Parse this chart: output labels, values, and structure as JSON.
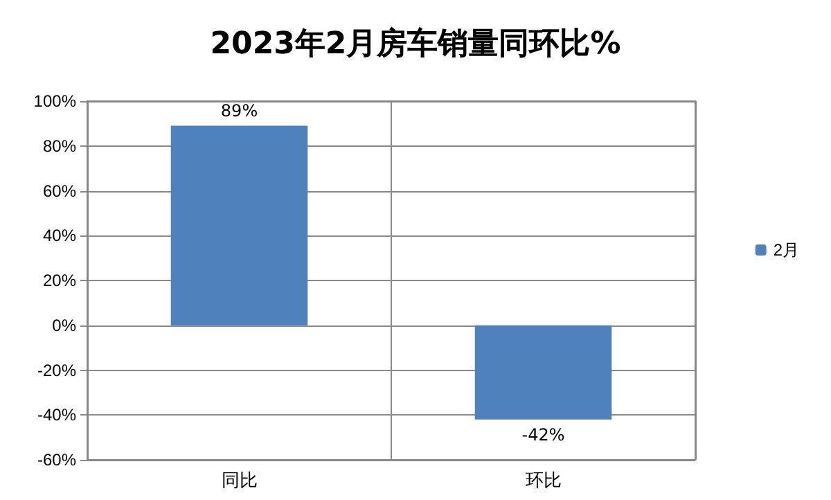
{
  "chart_data": {
    "type": "bar",
    "title": "2023年2月房车销量同环比%",
    "categories": [
      "同比",
      "环比"
    ],
    "series": [
      {
        "name": "2月",
        "color": "#4f81bd",
        "values": [
          89,
          -42
        ],
        "value_labels": [
          "89%",
          "-42%"
        ]
      }
    ],
    "ylim": [
      -60,
      100
    ],
    "yticks": [
      {
        "value": -60,
        "label": "-60%"
      },
      {
        "value": -40,
        "label": "-40%"
      },
      {
        "value": -20,
        "label": "-20%"
      },
      {
        "value": 0,
        "label": "0%"
      },
      {
        "value": 20,
        "label": "20%"
      },
      {
        "value": 40,
        "label": "40%"
      },
      {
        "value": 60,
        "label": "60%"
      },
      {
        "value": 80,
        "label": "80%"
      },
      {
        "value": 100,
        "label": "100%"
      }
    ],
    "grid": true,
    "legend": "right"
  }
}
